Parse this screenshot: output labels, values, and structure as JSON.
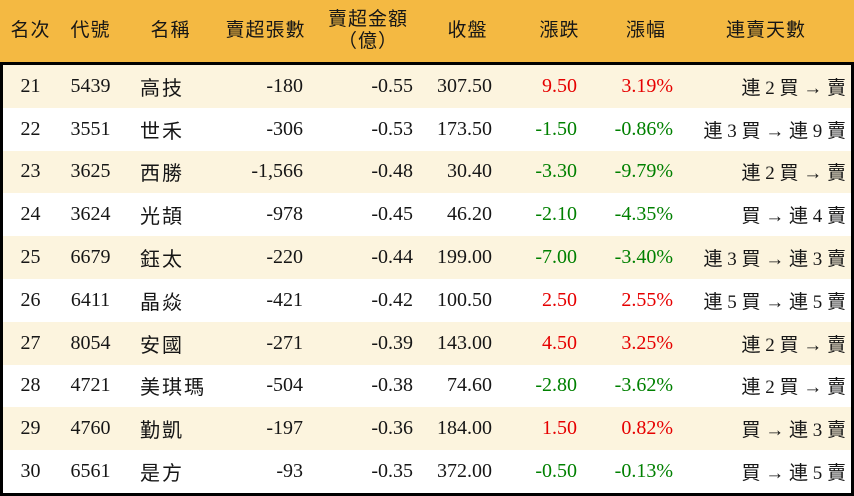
{
  "colors": {
    "header_bg": "#F4B942",
    "row_alt_bg": "#FCF4DE",
    "row_bg": "#FFFFFF",
    "up_red": "#E60000",
    "down_green": "#008000",
    "border": "#000000",
    "text": "#161616"
  },
  "header": {
    "amount_line1": "賣超金額",
    "amount_line2": "（億）"
  },
  "chart_data": {
    "type": "table",
    "columns": [
      "名次",
      "代號",
      "名稱",
      "賣超張數",
      "賣超金額（億）",
      "收盤",
      "漲跌",
      "漲幅",
      "連賣天數"
    ],
    "rows": [
      {
        "rank": "21",
        "code": "5439",
        "name": "高技",
        "net_sell_lots": "-180",
        "net_sell_amount": "-0.55",
        "close": "307.50",
        "change": "9.50",
        "change_pct": "3.19%",
        "trend": "up",
        "sell_streak": "連 2 買 → 賣"
      },
      {
        "rank": "22",
        "code": "3551",
        "name": "世禾",
        "net_sell_lots": "-306",
        "net_sell_amount": "-0.53",
        "close": "173.50",
        "change": "-1.50",
        "change_pct": "-0.86%",
        "trend": "down",
        "sell_streak": "連 3 買 → 連 9 賣"
      },
      {
        "rank": "23",
        "code": "3625",
        "name": "西勝",
        "net_sell_lots": "-1,566",
        "net_sell_amount": "-0.48",
        "close": "30.40",
        "change": "-3.30",
        "change_pct": "-9.79%",
        "trend": "down",
        "sell_streak": "連 2 買 → 賣"
      },
      {
        "rank": "24",
        "code": "3624",
        "name": "光頡",
        "net_sell_lots": "-978",
        "net_sell_amount": "-0.45",
        "close": "46.20",
        "change": "-2.10",
        "change_pct": "-4.35%",
        "trend": "down",
        "sell_streak": "買 → 連 4 賣"
      },
      {
        "rank": "25",
        "code": "6679",
        "name": "鈺太",
        "net_sell_lots": "-220",
        "net_sell_amount": "-0.44",
        "close": "199.00",
        "change": "-7.00",
        "change_pct": "-3.40%",
        "trend": "down",
        "sell_streak": "連 3 買 → 連 3 賣"
      },
      {
        "rank": "26",
        "code": "6411",
        "name": "晶焱",
        "net_sell_lots": "-421",
        "net_sell_amount": "-0.42",
        "close": "100.50",
        "change": "2.50",
        "change_pct": "2.55%",
        "trend": "up",
        "sell_streak": "連 5 買 → 連 5 賣"
      },
      {
        "rank": "27",
        "code": "8054",
        "name": "安國",
        "net_sell_lots": "-271",
        "net_sell_amount": "-0.39",
        "close": "143.00",
        "change": "4.50",
        "change_pct": "3.25%",
        "trend": "up",
        "sell_streak": "連 2 買 → 賣"
      },
      {
        "rank": "28",
        "code": "4721",
        "name": "美琪瑪",
        "net_sell_lots": "-504",
        "net_sell_amount": "-0.38",
        "close": "74.60",
        "change": "-2.80",
        "change_pct": "-3.62%",
        "trend": "down",
        "sell_streak": "連 2 買 → 賣"
      },
      {
        "rank": "29",
        "code": "4760",
        "name": "勤凱",
        "net_sell_lots": "-197",
        "net_sell_amount": "-0.36",
        "close": "184.00",
        "change": "1.50",
        "change_pct": "0.82%",
        "trend": "up",
        "sell_streak": "買 → 連 3 賣"
      },
      {
        "rank": "30",
        "code": "6561",
        "name": "是方",
        "net_sell_lots": "-93",
        "net_sell_amount": "-0.35",
        "close": "372.00",
        "change": "-0.50",
        "change_pct": "-0.13%",
        "trend": "down",
        "sell_streak": "買 → 連 5 賣"
      }
    ]
  }
}
